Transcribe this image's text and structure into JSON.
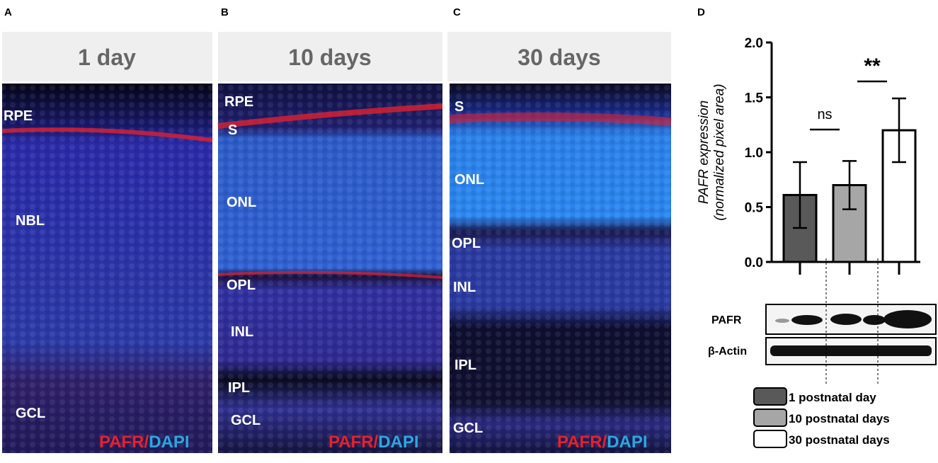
{
  "panels": [
    {
      "letter": "A",
      "title": "1 day",
      "layers": [
        "RPE",
        "NBL",
        "GCL"
      ],
      "stain_red": "PAFR/",
      "stain_blue": "DAPI"
    },
    {
      "letter": "B",
      "title": "10 days",
      "layers": [
        "RPE",
        "S",
        "ONL",
        "OPL",
        "INL",
        "IPL",
        "GCL"
      ],
      "stain_red": "PAFR/",
      "stain_blue": "DAPI"
    },
    {
      "letter": "C",
      "title": "30 days",
      "layers": [
        "S",
        "ONL",
        "OPL",
        "INL",
        "IPL",
        "GCL"
      ],
      "stain_red": "PAFR/",
      "stain_blue": "DAPI"
    }
  ],
  "chart_data": {
    "type": "bar",
    "letter": "D",
    "y_label": [
      "PAFR expression",
      "(normalized pixel area)"
    ],
    "categories": [
      "1 postnatal day",
      "10 postnatal days",
      "30 postnatal days"
    ],
    "values": [
      0.61,
      0.7,
      1.2
    ],
    "errors": [
      0.3,
      0.22,
      0.29
    ],
    "colors": [
      "#595959",
      "#a6a6a6",
      "#ffffff"
    ],
    "ylim": [
      0,
      2
    ],
    "yticks": [
      {
        "value": 0,
        "label": "0.0"
      },
      {
        "value": 0.5,
        "label": "0.5"
      },
      {
        "value": 1,
        "label": "1.0"
      },
      {
        "value": 1.5,
        "label": "1.5"
      },
      {
        "value": 2,
        "label": "2.0"
      }
    ],
    "annotations": [
      "ns",
      "**"
    ],
    "blot_labels": [
      "PAFR",
      "β-Actin"
    ]
  }
}
